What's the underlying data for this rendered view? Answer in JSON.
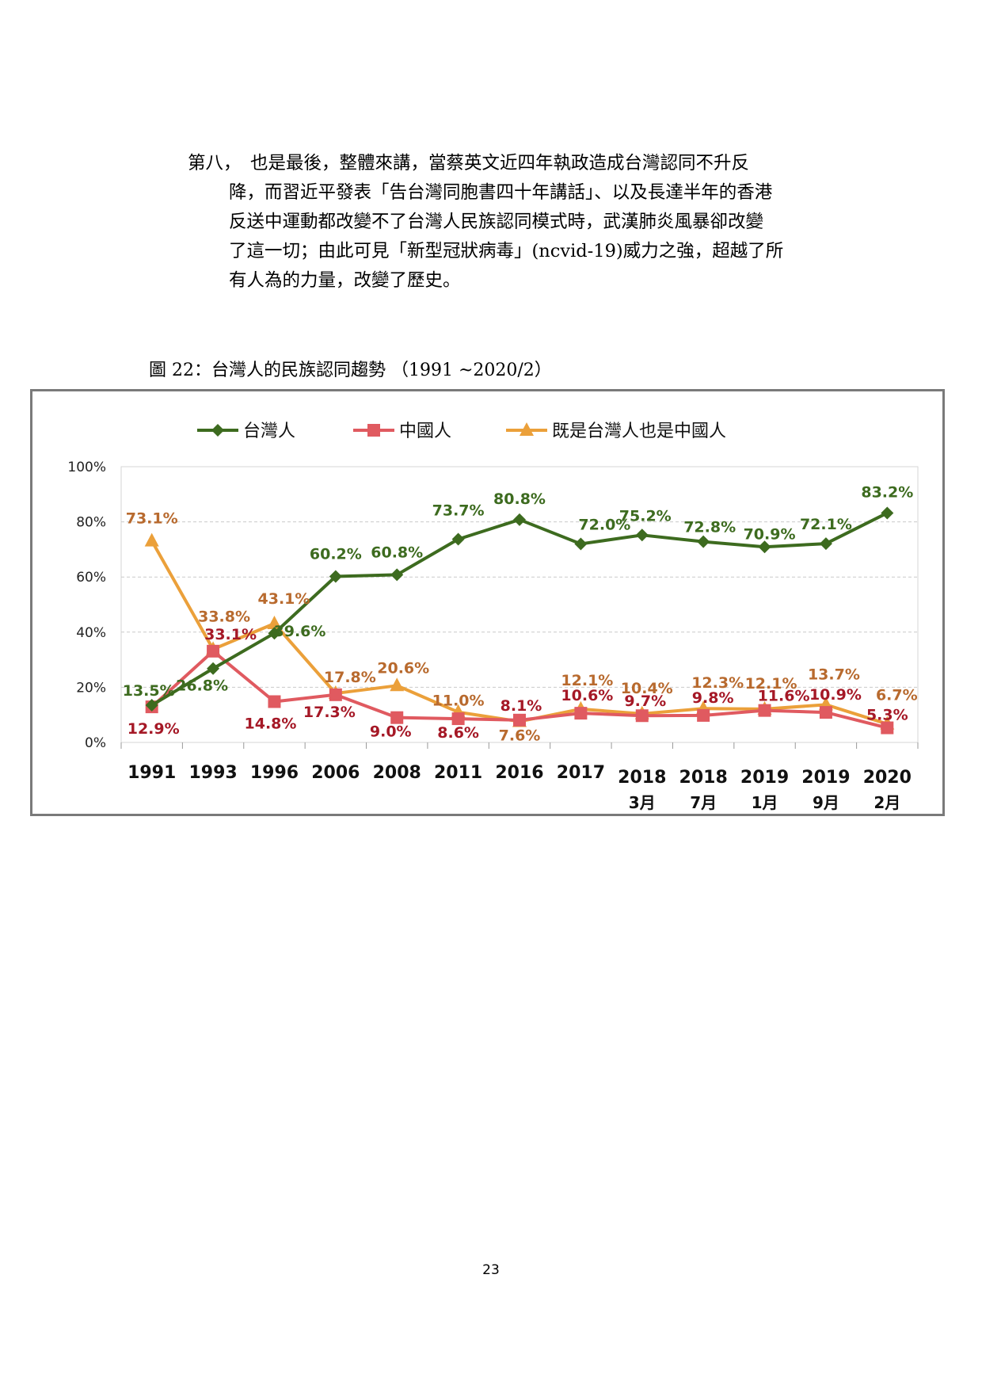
{
  "paragraph": {
    "lead": "第八，",
    "line1": "也是最後，整體來講，當蔡英文近四年執政造成台灣認同不升反",
    "line2": "降，而習近平發表「告台灣同胞書四十年講話」、以及長達半年的香港",
    "line3": "反送中運動都改變不了台灣人民族認同模式時，武漢肺炎風暴卻改變",
    "line4": "了這一切；由此可見「新型冠狀病毒」(ncvid-19)威力之強，超越了所",
    "line5": "有人為的力量，改變了歷史。"
  },
  "caption": "圖 22：台灣人的民族認同趨勢 （1991 ~2020/2）",
  "page_number": "23",
  "chart_data": {
    "type": "line",
    "title": "",
    "xlabel": "",
    "ylabel": "",
    "ylim": [
      0,
      100
    ],
    "y_ticks": [
      "0%",
      "20%",
      "40%",
      "60%",
      "80%",
      "100%"
    ],
    "grid": true,
    "legend_position": "top",
    "categories": [
      [
        "1991",
        ""
      ],
      [
        "1993",
        ""
      ],
      [
        "1996",
        ""
      ],
      [
        "2006",
        ""
      ],
      [
        "2008",
        ""
      ],
      [
        "2011",
        ""
      ],
      [
        "2016",
        ""
      ],
      [
        "2017",
        ""
      ],
      [
        "2018",
        "3月"
      ],
      [
        "2018",
        "7月"
      ],
      [
        "2019",
        "1月"
      ],
      [
        "2019",
        "9月"
      ],
      [
        "2020",
        "2月"
      ]
    ],
    "series": [
      {
        "name": "台灣人",
        "color": "#3d6b1f",
        "label_color": "#3d6b1f",
        "marker": "diamond",
        "values": [
          13.5,
          26.8,
          39.6,
          60.2,
          60.8,
          73.7,
          80.8,
          72.0,
          75.2,
          72.8,
          70.9,
          72.1,
          83.2
        ],
        "labels": [
          "13.5%",
          "26.8%",
          "39.6%",
          "60.2%",
          "60.8%",
          "73.7%",
          "80.8%",
          "72.0%",
          "75.2%",
          "72.8%",
          "70.9%",
          "72.1%",
          "83.2%"
        ]
      },
      {
        "name": "中國人",
        "color": "#e05a60",
        "label_color": "#a51826",
        "marker": "square",
        "values": [
          12.9,
          33.1,
          14.8,
          17.3,
          9.0,
          8.6,
          8.1,
          10.6,
          9.7,
          9.8,
          11.6,
          10.9,
          5.3
        ],
        "labels": [
          "12.9%",
          "33.1%",
          "14.8%",
          "17.3%",
          "9.0%",
          "8.6%",
          "8.1%",
          "10.6%",
          "9.7%",
          "9.8%",
          "11.6%",
          "10.9%",
          "5.3%"
        ]
      },
      {
        "name": "既是台灣人也是中國人",
        "color": "#eba03a",
        "label_color": "#b86a2e",
        "marker": "triangle",
        "values": [
          73.1,
          33.8,
          43.1,
          17.8,
          20.6,
          11.0,
          7.6,
          12.1,
          10.4,
          12.3,
          12.1,
          13.7,
          6.7
        ],
        "labels": [
          "73.1%",
          "33.8%",
          "43.1%",
          "17.8%",
          "20.6%",
          "11.0%",
          "7.6%",
          "12.1%",
          "10.4%",
          "12.3%",
          "12.1%",
          "13.7%",
          "6.7%"
        ]
      }
    ]
  }
}
